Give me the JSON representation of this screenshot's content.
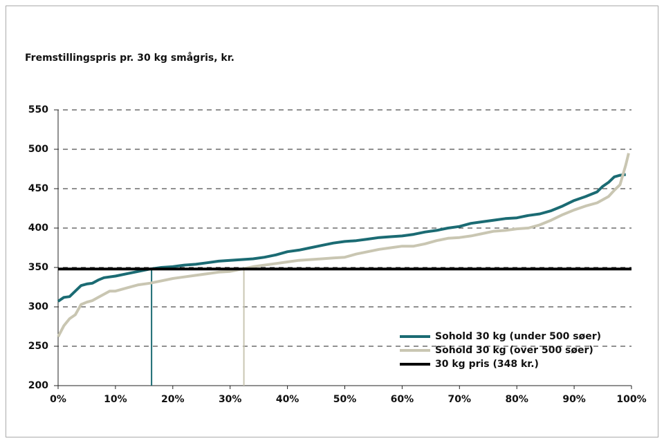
{
  "chart_data": {
    "type": "line",
    "title": "Fremstillingspris pr. 30 kg smågris, kr.",
    "xlim": [
      0,
      100
    ],
    "xticks": [
      {
        "value": 0,
        "label": "0%"
      },
      {
        "value": 10,
        "label": "10%"
      },
      {
        "value": 20,
        "label": "20%"
      },
      {
        "value": 30,
        "label": "30%"
      },
      {
        "value": 40,
        "label": "40%"
      },
      {
        "value": 50,
        "label": "50%"
      },
      {
        "value": 60,
        "label": "60%"
      },
      {
        "value": 70,
        "label": "70%"
      },
      {
        "value": 80,
        "label": "80%"
      },
      {
        "value": 90,
        "label": "90%"
      },
      {
        "value": 100,
        "label": "100%"
      }
    ],
    "ylim": [
      200,
      550
    ],
    "yticks": [
      200,
      250,
      300,
      350,
      400,
      450,
      500,
      550
    ],
    "grid": true,
    "legend": "lower right",
    "series": [
      {
        "name": "Sohold 30 kg (under 500 søer)",
        "color": "#1b6b73",
        "reference_x": 16.3,
        "x": [
          0,
          1,
          2,
          3,
          4,
          5,
          6,
          7,
          8,
          10,
          12,
          14,
          16,
          18,
          20,
          22,
          24,
          26,
          28,
          30,
          32,
          34,
          36,
          38,
          40,
          42,
          44,
          46,
          48,
          50,
          52,
          54,
          56,
          58,
          60,
          62,
          64,
          66,
          68,
          70,
          72,
          74,
          76,
          78,
          80,
          82,
          84,
          86,
          88,
          90,
          92,
          94,
          95,
          96,
          97,
          98,
          99
        ],
        "values": [
          307,
          312,
          313,
          320,
          327,
          329,
          330,
          334,
          337,
          339,
          342,
          345,
          348,
          350,
          351,
          353,
          354,
          356,
          358,
          359,
          360,
          361,
          363,
          366,
          370,
          372,
          375,
          378,
          381,
          383,
          384,
          386,
          388,
          389,
          390,
          392,
          395,
          397,
          400,
          402,
          406,
          408,
          410,
          412,
          413,
          416,
          418,
          422,
          428,
          435,
          440,
          446,
          453,
          458,
          465,
          467,
          468
        ]
      },
      {
        "name": "Sohold 30 kg (over 500 søer)",
        "color": "#c9c6b2",
        "reference_x": 32.4,
        "x": [
          0,
          1,
          2,
          3,
          4,
          5,
          6,
          7,
          8,
          9,
          10,
          12,
          14,
          16,
          18,
          20,
          22,
          24,
          26,
          28,
          30,
          32,
          34,
          36,
          38,
          40,
          42,
          44,
          46,
          48,
          50,
          52,
          54,
          56,
          58,
          60,
          62,
          64,
          66,
          68,
          70,
          72,
          74,
          76,
          78,
          80,
          82,
          84,
          86,
          88,
          90,
          92,
          94,
          96,
          97,
          98,
          99,
          99.5
        ],
        "values": [
          262,
          276,
          285,
          290,
          303,
          306,
          308,
          312,
          316,
          320,
          320,
          324,
          328,
          330,
          333,
          336,
          338,
          340,
          342,
          344,
          345,
          348,
          351,
          353,
          355,
          357,
          359,
          360,
          361,
          362,
          363,
          367,
          370,
          373,
          375,
          377,
          377,
          380,
          384,
          387,
          388,
          390,
          393,
          396,
          397,
          399,
          400,
          404,
          410,
          417,
          423,
          428,
          432,
          440,
          448,
          455,
          480,
          495
        ]
      },
      {
        "name": "30 kg pris (348 kr.)",
        "color": "#000000",
        "x": [
          0,
          100
        ],
        "values": [
          348,
          348
        ]
      }
    ]
  }
}
